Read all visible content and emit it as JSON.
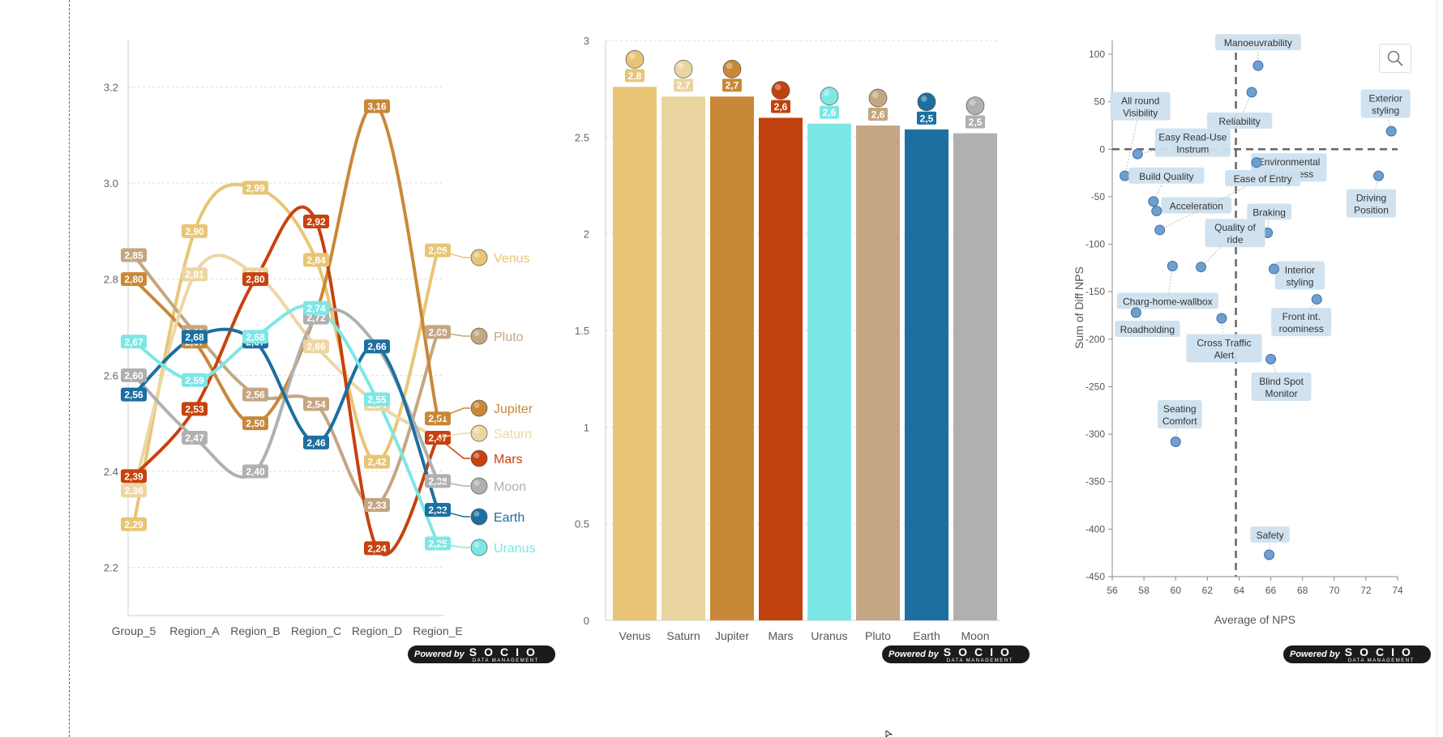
{
  "branding": {
    "powered_by": "Powered by",
    "brand": "SOCIO",
    "brand_sub": "DATA MANAGEMENT"
  },
  "chart_data": [
    {
      "type": "line",
      "categories": [
        "Group_5",
        "Region_A",
        "Region_B",
        "Region_C",
        "Region_D",
        "Region_E"
      ],
      "ylim": [
        2.1,
        3.3
      ],
      "yticks": [
        "2.2",
        "2.4",
        "2.6",
        "2.8",
        "3.0",
        "3.2"
      ],
      "grid": true,
      "legend_position": "right",
      "series": [
        {
          "name": "Venus",
          "color": "#e8c575",
          "values": [
            2.29,
            2.9,
            2.99,
            2.84,
            2.42,
            2.86
          ],
          "labels": [
            "2,29",
            "2,90",
            "2,99",
            "2,84",
            "2,42",
            "2,86"
          ]
        },
        {
          "name": "Pluto",
          "color": "#c4a682",
          "values": [
            2.85,
            2.69,
            2.56,
            2.54,
            2.33,
            2.69
          ],
          "labels": [
            "2,85",
            "2,69",
            "2,56",
            "2,54",
            "2,33",
            "2,69"
          ]
        },
        {
          "name": "Jupiter",
          "color": "#c98838",
          "values": [
            2.8,
            2.67,
            2.5,
            2.73,
            3.16,
            2.51
          ],
          "labels": [
            "2,80",
            "2,67",
            "2,50",
            "2,73",
            "3,16",
            "2,51"
          ]
        },
        {
          "name": "Saturn",
          "color": "#ecd6a4",
          "values": [
            2.36,
            2.81,
            2.81,
            2.66,
            2.54,
            2.47
          ],
          "labels": [
            "2,36",
            "2,81",
            "2,81",
            "2,66",
            "2,54",
            "2,47"
          ]
        },
        {
          "name": "Mars",
          "color": "#c7420f",
          "values": [
            2.39,
            2.53,
            2.8,
            2.92,
            2.24,
            2.47
          ],
          "labels": [
            "2,39",
            "2,53",
            "2,80",
            "2,92",
            "2,24",
            "2,47"
          ]
        },
        {
          "name": "Moon",
          "color": "#b0b0b0",
          "values": [
            2.6,
            2.47,
            2.4,
            2.72,
            2.66,
            2.38
          ],
          "labels": [
            "2,60",
            "2,47",
            "2,40",
            "2,72",
            "2,66",
            "2,38"
          ]
        },
        {
          "name": "Earth",
          "color": "#1c6fa0",
          "values": [
            2.56,
            2.68,
            2.67,
            2.46,
            2.66,
            2.32
          ],
          "labels": [
            "2,56",
            "2,68",
            "2,67",
            "2,46",
            "2,66",
            "2,32"
          ]
        },
        {
          "name": "Uranus",
          "color": "#7de7e5",
          "values": [
            2.67,
            2.59,
            2.68,
            2.74,
            2.55,
            2.25
          ],
          "labels": [
            "2,67",
            "2,59",
            "2,68",
            "2,74",
            "2,55",
            "2,25"
          ]
        }
      ]
    },
    {
      "type": "bar",
      "categories": [
        "Venus",
        "Saturn",
        "Jupiter",
        "Mars",
        "Uranus",
        "Pluto",
        "Earth",
        "Moon"
      ],
      "values": [
        2.76,
        2.71,
        2.71,
        2.6,
        2.57,
        2.56,
        2.54,
        2.52
      ],
      "labels": [
        "2,8",
        "2,7",
        "2,7",
        "2,6",
        "2,6",
        "2,6",
        "2,5",
        "2,5"
      ],
      "colors": [
        "#e8c575",
        "#ead5a1",
        "#c98838",
        "#c1410f",
        "#7de7e5",
        "#c4a682",
        "#1c6fa0",
        "#b0b0b0"
      ],
      "ylim": [
        0,
        3
      ],
      "yticks": [
        "0",
        "0.5",
        "1",
        "1.5",
        "2",
        "2.5",
        "3"
      ],
      "grid": true
    },
    {
      "type": "scatter",
      "xlabel": "Average of NPS",
      "ylabel": "Sum of Diff NPS",
      "xlim": [
        56,
        74
      ],
      "ylim": [
        -450,
        110
      ],
      "xticks": [
        "56",
        "58",
        "60",
        "62",
        "64",
        "66",
        "68",
        "70",
        "72",
        "74"
      ],
      "yticks": [
        "100",
        "50",
        "0",
        "-50",
        "-100",
        "-150",
        "-200",
        "-250",
        "-300",
        "-350",
        "-400",
        "-450"
      ],
      "reference_lines": {
        "x": 63.8,
        "y": 0
      },
      "points": [
        {
          "label": "Manoeuvrability",
          "x": 65.2,
          "y": 88
        },
        {
          "label": "Reliability",
          "x": 64.8,
          "y": 60
        },
        {
          "label": "All round Visibility",
          "x": 56.8,
          "y": -28
        },
        {
          "label": "Easy Read-Use Instrum",
          "x": 57.6,
          "y": -5
        },
        {
          "label": "Exterior styling",
          "x": 73.6,
          "y": 19
        },
        {
          "label": "Environmental friendliness",
          "x": 65.1,
          "y": -14
        },
        {
          "label": "Driving Position",
          "x": 72.8,
          "y": -28
        },
        {
          "label": "Build Quality",
          "x": 58.6,
          "y": -55
        },
        {
          "label": "Acceleration",
          "x": 58.8,
          "y": -65
        },
        {
          "label": "Ease of Entry",
          "x": 59.0,
          "y": -85
        },
        {
          "label": "Braking",
          "x": 65.8,
          "y": -88
        },
        {
          "label": "Quality of ride",
          "x": 61.6,
          "y": -124
        },
        {
          "label": "Charg-home-wallbox",
          "x": 59.8,
          "y": -123
        },
        {
          "label": "Interior styling",
          "x": 66.2,
          "y": -126
        },
        {
          "label": "Front int. roominess",
          "x": 68.9,
          "y": -158
        },
        {
          "label": "Roadholding",
          "x": 57.5,
          "y": -172
        },
        {
          "label": "Cross Traffic Alert",
          "x": 62.9,
          "y": -178
        },
        {
          "label": "Blind Spot Monitor",
          "x": 66.0,
          "y": -221
        },
        {
          "label": "Seating Comfort",
          "x": 60.0,
          "y": -308
        },
        {
          "label": "Safety",
          "x": 65.9,
          "y": -427
        }
      ]
    }
  ]
}
